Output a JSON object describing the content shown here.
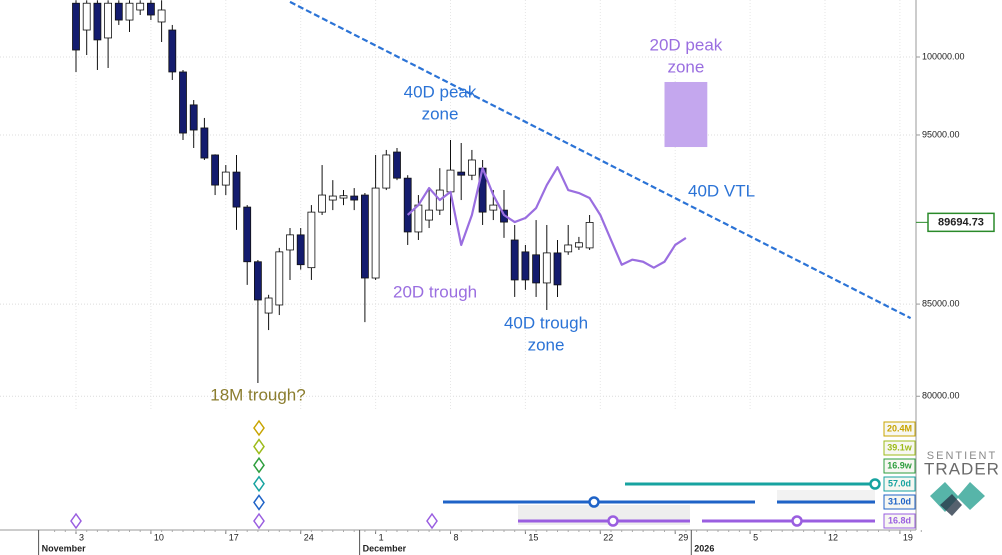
{
  "chart_data": {
    "type": "candlestick",
    "log_scale": true,
    "grid": true,
    "up_color": "#ffffff",
    "down_color": "#141c6e",
    "wick_color": "#111111",
    "categories": [
      "Nov 1",
      "Nov 2",
      "Nov 3",
      "Nov 4",
      "Nov 5",
      "Nov 6",
      "Nov 7",
      "Nov 8",
      "Nov 9",
      "Nov 10",
      "Nov 11",
      "Nov 12",
      "Nov 13",
      "Nov 14",
      "Nov 15",
      "Nov 16",
      "Nov 17",
      "Nov 18",
      "Nov 19",
      "Nov 20",
      "Nov 21",
      "Nov 22",
      "Nov 23",
      "Nov 24",
      "Nov 25",
      "Nov 26",
      "Nov 27",
      "Nov 28",
      "Nov 29",
      "Nov 30",
      "Dec 1",
      "Dec 2",
      "Dec 3",
      "Dec 4",
      "Dec 5",
      "Dec 6",
      "Dec 7",
      "Dec 8",
      "Dec 9",
      "Dec 10",
      "Dec 11",
      "Dec 12",
      "Dec 13",
      "Dec 14",
      "Dec 15",
      "Dec 16",
      "Dec 17",
      "Dec 18",
      "Dec 19",
      "Dec 20",
      "Dec 21",
      "Dec 22",
      "Dec 23",
      "Dec 24",
      "Dec 25",
      "Dec 26",
      "Dec 27",
      "Dec 28",
      "Dec 29",
      "Dec 30",
      "Dec 31",
      "Jan 1",
      "Jan 2",
      "Jan 3",
      "Jan 4",
      "Jan 5",
      "Jan 6",
      "Jan 7",
      "Jan 8",
      "Jan 9",
      "Jan 10",
      "Jan 11",
      "Jan 12",
      "Jan 13",
      "Jan 14",
      "Jan 15",
      "Jan 16",
      "Jan 17",
      "Jan 18",
      "Jan 19",
      "Jan 20",
      "Jan 21"
    ],
    "open": [
      null,
      null,
      103600,
      101790,
      103600,
      101260,
      103600,
      102460,
      103140,
      103600,
      102330,
      101790,
      99020,
      96900,
      95440,
      93760,
      91920,
      92710,
      90600,
      87400,
      84500,
      84950,
      88080,
      88960,
      87060,
      90300,
      91020,
      91140,
      91260,
      91320,
      86470,
      91740,
      93940,
      92340,
      89130,
      89830,
      90420,
      91510,
      92710,
      92520,
      92950,
      90420,
      90420,
      88660,
      87970,
      87800,
      86190,
      87910,
      87970,
      88250,
      88200,
      null,
      null,
      null,
      null,
      null,
      null,
      null,
      null,
      null,
      null,
      null,
      null,
      null,
      null,
      null,
      null,
      null,
      null,
      null,
      null,
      null,
      null,
      null,
      null,
      null,
      null,
      null,
      null,
      null,
      null,
      null
    ],
    "high": [
      null,
      null,
      103800,
      103800,
      103800,
      103800,
      103800,
      103800,
      103800,
      103800,
      103800,
      102130,
      99150,
      97210,
      96070,
      93800,
      93140,
      93760,
      90720,
      87500,
      85520,
      88200,
      89360,
      89360,
      90720,
      93140,
      92220,
      91620,
      91740,
      91440,
      93760,
      94070,
      94190,
      92520,
      91320,
      91620,
      92950,
      94690,
      94500,
      94070,
      93450,
      91620,
      91620,
      89540,
      88370,
      89830,
      89540,
      88660,
      89540,
      88840,
      90130,
      null,
      null,
      null,
      null,
      null,
      null,
      null,
      null,
      null,
      null,
      null,
      null,
      null,
      null,
      null,
      null,
      null,
      null,
      null,
      null,
      null,
      null,
      null,
      null,
      null,
      null,
      null,
      null,
      null,
      null,
      null
    ],
    "low": [
      null,
      null,
      99020,
      100130,
      99150,
      99280,
      102130,
      101660,
      102800,
      102460,
      100990,
      98500,
      94690,
      94190,
      93450,
      91320,
      91320,
      89250,
      86080,
      80700,
      83560,
      84390,
      86360,
      86950,
      86360,
      90130,
      90420,
      90720,
      90420,
      84000,
      86360,
      91620,
      92220,
      88370,
      88660,
      89360,
      90130,
      89540,
      91020,
      92220,
      89540,
      89830,
      88780,
      85400,
      85800,
      85400,
      84670,
      85400,
      87800,
      88080,
      88080,
      null,
      null,
      null,
      null,
      null,
      null,
      null,
      null,
      null,
      null,
      null,
      null,
      null,
      null,
      null,
      null,
      null,
      null,
      null,
      null,
      null,
      null,
      null,
      null,
      null,
      null,
      null,
      null,
      null,
      null,
      null
    ],
    "close": [
      null,
      null,
      100460,
      103600,
      101130,
      103600,
      102460,
      103600,
      103600,
      102800,
      103140,
      99020,
      95120,
      95310,
      93570,
      91920,
      92710,
      90600,
      87400,
      85230,
      85340,
      87970,
      88960,
      87230,
      90300,
      91320,
      91260,
      91280,
      91020,
      86470,
      91740,
      93760,
      92340,
      89130,
      90720,
      90420,
      91620,
      92830,
      92520,
      93450,
      90300,
      90720,
      89710,
      86360,
      86360,
      86190,
      87910,
      86080,
      88370,
      88500,
      89690,
      null,
      null,
      null,
      null,
      null,
      null,
      null,
      null,
      null,
      null,
      null,
      null,
      null,
      null,
      null,
      null,
      null,
      null,
      null,
      null,
      null,
      null,
      null,
      null,
      null,
      null,
      null,
      null,
      null,
      null,
      null
    ],
    "forecast": {
      "color": "#9a6ee0",
      "values": [
        null,
        null,
        null,
        null,
        null,
        null,
        null,
        null,
        null,
        null,
        null,
        null,
        null,
        null,
        null,
        null,
        null,
        null,
        null,
        null,
        null,
        null,
        null,
        null,
        null,
        null,
        null,
        null,
        null,
        null,
        null,
        null,
        null,
        90130,
        90720,
        91740,
        91020,
        91510,
        88370,
        90130,
        92950,
        91320,
        90130,
        89710,
        89950,
        90540,
        91920,
        93010,
        91620,
        91440,
        91140,
        90130,
        88660,
        87230,
        87520,
        87400,
        87060,
        87400,
        88370,
        88780,
        null,
        null,
        null,
        null,
        null,
        null,
        null,
        null,
        null,
        null,
        null,
        null,
        null,
        null,
        null,
        null,
        null,
        null,
        null,
        null,
        null,
        null
      ]
    },
    "ylim": [
      79280,
      103820
    ],
    "yticks": [
      {
        "value": 80000,
        "label": "80000.00"
      },
      {
        "value": 85000,
        "label": "85000.00"
      },
      {
        "value": 95000,
        "label": "95000.00"
      },
      {
        "value": 100000,
        "label": "100000.00"
      }
    ],
    "xticks": [
      {
        "value": "Nov 3",
        "label": "3"
      },
      {
        "value": "Nov 10",
        "label": "10"
      },
      {
        "value": "Nov 17",
        "label": "17"
      },
      {
        "value": "Nov 24",
        "label": "24"
      },
      {
        "value": "Dec 1",
        "label": "1"
      },
      {
        "value": "Dec 8",
        "label": "8"
      },
      {
        "value": "Dec 15",
        "label": "15"
      },
      {
        "value": "Dec 22",
        "label": "22"
      },
      {
        "value": "Dec 29",
        "label": "29"
      },
      {
        "value": "Jan 5",
        "label": "5"
      },
      {
        "value": "Jan 12",
        "label": "12"
      },
      {
        "value": "Jan 19",
        "label": "19"
      }
    ],
    "month_ticks": [
      {
        "value": "Nov 1",
        "label": "November"
      },
      {
        "value": "Dec 1",
        "label": "December"
      },
      {
        "value": "Jan 1",
        "label": "2026"
      }
    ],
    "last_price": 89694.73,
    "last_price_color": "#2a8a2a",
    "trendline": {
      "label": "40D VTL",
      "color": "#2b73d6",
      "x": [
        "Nov 23",
        "Jan 20"
      ],
      "values": [
        103690,
        84220
      ]
    },
    "zone": {
      "lines": [
        "20D peak",
        "zone"
      ],
      "color": "#c4a7ee",
      "label_color": "#9a6ee0",
      "x": [
        "Dec 28",
        "Jan 1"
      ],
      "y": [
        94250,
        98370
      ]
    },
    "annotations": [
      {
        "lines": [
          "40D peak",
          "zone"
        ],
        "color": "#2b73d6"
      },
      {
        "lines": [
          "20D trough"
        ],
        "color": "#9a6ee0"
      },
      {
        "lines": [
          "40D trough",
          "zone"
        ],
        "color": "#2b73d6"
      },
      {
        "lines": [
          "18M trough?"
        ],
        "color": "#8b7d2e"
      }
    ],
    "cycles": [
      {
        "label": "20.4M",
        "color": "#c8a400"
      },
      {
        "label": "39.1w",
        "color": "#9dbb1a"
      },
      {
        "label": "16.9w",
        "color": "#2e9e3e"
      },
      {
        "label": "57.0d",
        "color": "#17a3a0"
      },
      {
        "label": "31.0d",
        "color": "#1f63c7"
      },
      {
        "label": "16.8d",
        "color": "#9a5ee0"
      }
    ],
    "branding": [
      "SENTIENT",
      "TRADER"
    ]
  }
}
